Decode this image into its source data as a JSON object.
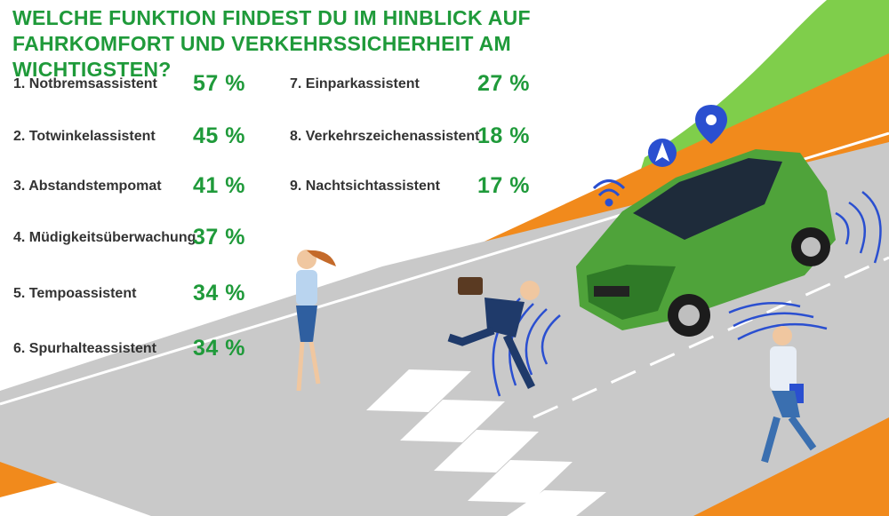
{
  "chart_data": {
    "type": "table",
    "title": "Welche Funktion findest du im Hinblick auf Fahrkomfort und Verkehrssicherheit am wichtigsten?",
    "categories": [
      "1. Notbremsassistent",
      "2. Totwinkelassistent",
      "3. Abstandstempomat",
      "4. Müdigkeitsüberwachung",
      "5. Tempoassistent",
      "6. Spurhalteassistent",
      "7. Einparkassistent",
      "8. Verkehrszeichenassistent",
      "9. Nachtsichtassistent"
    ],
    "values": [
      57,
      45,
      41,
      37,
      34,
      34,
      27,
      18,
      17
    ],
    "value_labels": [
      "57 %",
      "45 %",
      "41 %",
      "37 %",
      "34 %",
      "34 %",
      "27 %",
      "18 %",
      "17 %"
    ],
    "unit": "%"
  },
  "colors": {
    "accent": "#1f9a3a",
    "text": "#333333",
    "light_green": "#7fce4b",
    "orange": "#f18a1c",
    "road": "#c8c8c8",
    "car": "#4fa33a",
    "signal": "#2a4fd0"
  },
  "icons": [
    "wifi-signal-icon",
    "navigation-arrow-icon",
    "map-pin-icon",
    "sensor-wave-icon"
  ]
}
